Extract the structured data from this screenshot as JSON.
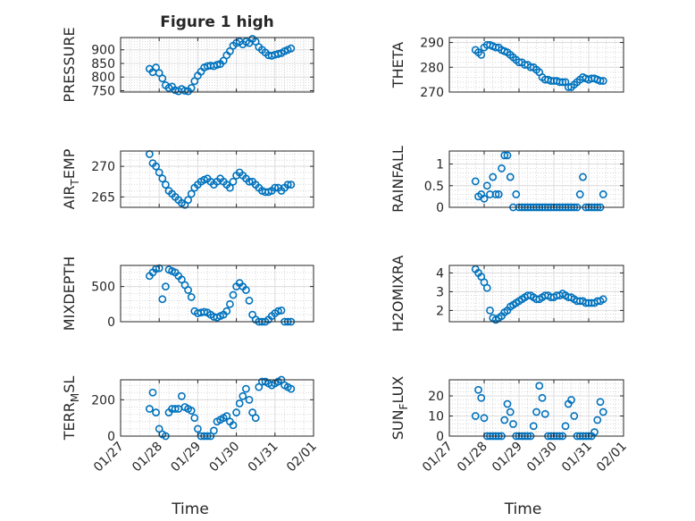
{
  "figure": {
    "title": "Figure 1 high",
    "marker_color": "#0072bd",
    "axis_color": "#262626",
    "grid_color": "#c8c8c8"
  },
  "chart_data": [
    {
      "type": "scatter",
      "title": "Figure 1 high",
      "ylabel": "PRESSURE",
      "xlabel": "",
      "x_tick_labels": [],
      "xlim": [
        "01/27",
        "02/01"
      ],
      "ylim": [
        745,
        945
      ],
      "yticks": [
        750,
        800,
        850,
        900
      ],
      "y_tick_labels": [
        "750",
        "800",
        "850",
        "900"
      ],
      "grid": true,
      "x": [
        "01/27 18:00",
        "01/27 20:00",
        "01/27 22:00",
        "01/28 00:00",
        "01/28 02:00",
        "01/28 04:00",
        "01/28 06:00",
        "01/28 08:00",
        "01/28 10:00",
        "01/28 12:00",
        "01/28 14:00",
        "01/28 16:00",
        "01/28 18:00",
        "01/28 20:00",
        "01/28 22:00",
        "01/29 00:00",
        "01/29 02:00",
        "01/29 04:00",
        "01/29 06:00",
        "01/29 08:00",
        "01/29 10:00",
        "01/29 12:00",
        "01/29 14:00",
        "01/29 16:00",
        "01/29 18:00",
        "01/29 20:00",
        "01/29 22:00",
        "01/30 00:00",
        "01/30 02:00",
        "01/30 04:00",
        "01/30 06:00",
        "01/30 08:00",
        "01/30 10:00",
        "01/30 12:00",
        "01/30 14:00",
        "01/30 16:00",
        "01/30 18:00",
        "01/30 20:00",
        "01/30 22:00",
        "01/31 00:00",
        "01/31 02:00",
        "01/31 04:00",
        "01/31 06:00",
        "01/31 08:00",
        "01/31 10:00"
      ],
      "y": [
        830,
        818,
        835,
        815,
        795,
        770,
        760,
        765,
        752,
        748,
        756,
        750,
        748,
        760,
        785,
        805,
        820,
        835,
        840,
        842,
        840,
        845,
        848,
        860,
        880,
        895,
        915,
        925,
        930,
        920,
        930,
        925,
        940,
        930,
        910,
        900,
        890,
        880,
        878,
        882,
        885,
        888,
        895,
        900,
        905
      ]
    },
    {
      "type": "scatter",
      "ylabel": "THETA",
      "x_tick_labels": [],
      "xlim": [
        "01/27",
        "02/01"
      ],
      "ylim": [
        270,
        292
      ],
      "yticks": [
        270,
        280,
        290
      ],
      "y_tick_labels": [
        "270",
        "280",
        "290"
      ],
      "grid": true,
      "x": [
        "01/27 18:00",
        "01/27 20:00",
        "01/27 22:00",
        "01/28 00:00",
        "01/28 02:00",
        "01/28 04:00",
        "01/28 06:00",
        "01/28 08:00",
        "01/28 10:00",
        "01/28 12:00",
        "01/28 14:00",
        "01/28 16:00",
        "01/28 18:00",
        "01/28 20:00",
        "01/28 22:00",
        "01/29 00:00",
        "01/29 02:00",
        "01/29 04:00",
        "01/29 06:00",
        "01/29 08:00",
        "01/29 10:00",
        "01/29 12:00",
        "01/29 14:00",
        "01/29 16:00",
        "01/29 18:00",
        "01/29 20:00",
        "01/29 22:00",
        "01/30 00:00",
        "01/30 02:00",
        "01/30 04:00",
        "01/30 06:00",
        "01/30 08:00",
        "01/30 10:00",
        "01/30 12:00",
        "01/30 14:00",
        "01/30 16:00",
        "01/30 18:00",
        "01/30 20:00",
        "01/30 22:00",
        "01/31 00:00",
        "01/31 02:00",
        "01/31 04:00",
        "01/31 06:00",
        "01/31 08:00",
        "01/31 10:00"
      ],
      "y": [
        287,
        286,
        285,
        288,
        289,
        289,
        288.5,
        288,
        288,
        287,
        286.5,
        286,
        285,
        284,
        283,
        282,
        282,
        281,
        281,
        280,
        280,
        279,
        278,
        276,
        275,
        275,
        274.5,
        274.5,
        274.5,
        274,
        274,
        274,
        272,
        272,
        273,
        274,
        275,
        276,
        275.5,
        275,
        275.5,
        275.5,
        275,
        274.5,
        274.5
      ]
    },
    {
      "type": "scatter",
      "ylabel": "AIR_TEMP",
      "ylabel_parts": [
        "AIR",
        "T",
        "EMP"
      ],
      "x_tick_labels": [],
      "xlim": [
        "01/27",
        "02/01"
      ],
      "ylim": [
        263.3,
        272.5
      ],
      "yticks": [
        265,
        270
      ],
      "y_tick_labels": [
        "265",
        "270"
      ],
      "grid": true,
      "x": [
        "01/27 18:00",
        "01/27 20:00",
        "01/27 22:00",
        "01/28 00:00",
        "01/28 02:00",
        "01/28 04:00",
        "01/28 06:00",
        "01/28 08:00",
        "01/28 10:00",
        "01/28 12:00",
        "01/28 14:00",
        "01/28 16:00",
        "01/28 18:00",
        "01/28 20:00",
        "01/28 22:00",
        "01/29 00:00",
        "01/29 02:00",
        "01/29 04:00",
        "01/29 06:00",
        "01/29 08:00",
        "01/29 10:00",
        "01/29 12:00",
        "01/29 14:00",
        "01/29 16:00",
        "01/29 18:00",
        "01/29 20:00",
        "01/29 22:00",
        "01/30 00:00",
        "01/30 02:00",
        "01/30 04:00",
        "01/30 06:00",
        "01/30 08:00",
        "01/30 10:00",
        "01/30 12:00",
        "01/30 14:00",
        "01/30 16:00",
        "01/30 18:00",
        "01/30 20:00",
        "01/30 22:00",
        "01/31 00:00",
        "01/31 02:00",
        "01/31 04:00",
        "01/31 06:00",
        "01/31 08:00",
        "01/31 10:00"
      ],
      "y": [
        272,
        270.5,
        270,
        269,
        268,
        267,
        266,
        265.5,
        265,
        264.5,
        264,
        263.7,
        264.5,
        265.5,
        266.5,
        267,
        267.5,
        267.8,
        268,
        267.5,
        267,
        267.5,
        268,
        267.5,
        267,
        266.5,
        267.5,
        268.5,
        269,
        268.5,
        268,
        267.5,
        267.5,
        267,
        266.5,
        266,
        265.8,
        265.8,
        266,
        266.5,
        266.5,
        266,
        266.5,
        267,
        267
      ]
    },
    {
      "type": "scatter",
      "ylabel": "RAINFALL",
      "x_tick_labels": [],
      "xlim": [
        "01/27",
        "02/01"
      ],
      "ylim": [
        0,
        1.3
      ],
      "yticks": [
        0,
        0.5,
        1
      ],
      "y_tick_labels": [
        "0",
        "0.5",
        "1"
      ],
      "grid": true,
      "x": [
        "01/27 18:00",
        "01/27 20:00",
        "01/27 22:00",
        "01/28 00:00",
        "01/28 02:00",
        "01/28 04:00",
        "01/28 06:00",
        "01/28 08:00",
        "01/28 10:00",
        "01/28 12:00",
        "01/28 14:00",
        "01/28 16:00",
        "01/28 18:00",
        "01/28 20:00",
        "01/28 22:00",
        "01/29 00:00",
        "01/29 02:00",
        "01/29 04:00",
        "01/29 06:00",
        "01/29 08:00",
        "01/29 10:00",
        "01/29 12:00",
        "01/29 14:00",
        "01/29 16:00",
        "01/29 18:00",
        "01/29 20:00",
        "01/29 22:00",
        "01/30 00:00",
        "01/30 02:00",
        "01/30 04:00",
        "01/30 06:00",
        "01/30 08:00",
        "01/30 10:00",
        "01/30 12:00",
        "01/30 14:00",
        "01/30 16:00",
        "01/30 18:00",
        "01/30 20:00",
        "01/30 22:00",
        "01/31 00:00",
        "01/31 02:00",
        "01/31 04:00",
        "01/31 06:00",
        "01/31 08:00",
        "01/31 10:00"
      ],
      "y": [
        0.6,
        0.25,
        0.3,
        0.2,
        0.5,
        0.3,
        0.7,
        0.3,
        0.3,
        0.9,
        1.2,
        1.2,
        0.7,
        0,
        0.3,
        0,
        0,
        0,
        0,
        0,
        0,
        0,
        0,
        0,
        0,
        0,
        0,
        0,
        0,
        0,
        0,
        0,
        0,
        0,
        0,
        0,
        0.3,
        0.7,
        0,
        0,
        0,
        0,
        0,
        0,
        0.3
      ]
    },
    {
      "type": "scatter",
      "ylabel": "MIXDEPTH",
      "x_tick_labels": [],
      "xlim": [
        "01/27",
        "02/01"
      ],
      "ylim": [
        0,
        800
      ],
      "yticks": [
        0,
        500
      ],
      "y_tick_labels": [
        "0",
        "500"
      ],
      "grid": true,
      "x": [
        "01/27 18:00",
        "01/27 20:00",
        "01/27 22:00",
        "01/28 00:00",
        "01/28 02:00",
        "01/28 04:00",
        "01/28 06:00",
        "01/28 08:00",
        "01/28 10:00",
        "01/28 12:00",
        "01/28 14:00",
        "01/28 16:00",
        "01/28 18:00",
        "01/28 20:00",
        "01/28 22:00",
        "01/29 00:00",
        "01/29 02:00",
        "01/29 04:00",
        "01/29 06:00",
        "01/29 08:00",
        "01/29 10:00",
        "01/29 12:00",
        "01/29 14:00",
        "01/29 16:00",
        "01/29 18:00",
        "01/29 20:00",
        "01/29 22:00",
        "01/30 00:00",
        "01/30 02:00",
        "01/30 04:00",
        "01/30 06:00",
        "01/30 08:00",
        "01/30 10:00",
        "01/30 12:00",
        "01/30 14:00",
        "01/30 16:00",
        "01/30 18:00",
        "01/30 20:00",
        "01/30 22:00",
        "01/31 00:00",
        "01/31 02:00",
        "01/31 04:00",
        "01/31 06:00",
        "01/31 08:00",
        "01/31 10:00"
      ],
      "y": [
        650,
        700,
        750,
        760,
        320,
        500,
        740,
        720,
        700,
        650,
        600,
        520,
        450,
        350,
        150,
        120,
        130,
        140,
        130,
        100,
        70,
        60,
        80,
        100,
        150,
        250,
        380,
        500,
        550,
        500,
        450,
        300,
        100,
        30,
        0,
        0,
        0,
        30,
        80,
        120,
        150,
        160,
        0,
        0,
        0
      ]
    },
    {
      "type": "scatter",
      "ylabel": "H2OMIXRA",
      "x_tick_labels": [],
      "xlim": [
        "01/27",
        "02/01"
      ],
      "ylim": [
        1.4,
        4.4
      ],
      "yticks": [
        2,
        3,
        4
      ],
      "y_tick_labels": [
        "2",
        "3",
        "4"
      ],
      "grid": true,
      "x": [
        "01/27 18:00",
        "01/27 20:00",
        "01/27 22:00",
        "01/28 00:00",
        "01/28 02:00",
        "01/28 04:00",
        "01/28 06:00",
        "01/28 08:00",
        "01/28 10:00",
        "01/28 12:00",
        "01/28 14:00",
        "01/28 16:00",
        "01/28 18:00",
        "01/28 20:00",
        "01/28 22:00",
        "01/29 00:00",
        "01/29 02:00",
        "01/29 04:00",
        "01/29 06:00",
        "01/29 08:00",
        "01/29 10:00",
        "01/29 12:00",
        "01/29 14:00",
        "01/29 16:00",
        "01/29 18:00",
        "01/29 20:00",
        "01/29 22:00",
        "01/30 00:00",
        "01/30 02:00",
        "01/30 04:00",
        "01/30 06:00",
        "01/30 08:00",
        "01/30 10:00",
        "01/30 12:00",
        "01/30 14:00",
        "01/30 16:00",
        "01/30 18:00",
        "01/30 20:00",
        "01/30 22:00",
        "01/31 00:00",
        "01/31 02:00",
        "01/31 04:00",
        "01/31 06:00",
        "01/31 08:00",
        "01/31 10:00"
      ],
      "y": [
        4.2,
        4.0,
        3.8,
        3.5,
        3.2,
        2.0,
        1.6,
        1.5,
        1.6,
        1.7,
        1.9,
        2.0,
        2.2,
        2.3,
        2.4,
        2.5,
        2.6,
        2.7,
        2.8,
        2.8,
        2.7,
        2.6,
        2.6,
        2.7,
        2.8,
        2.8,
        2.7,
        2.7,
        2.8,
        2.8,
        2.9,
        2.8,
        2.7,
        2.7,
        2.6,
        2.5,
        2.5,
        2.5,
        2.4,
        2.4,
        2.4,
        2.4,
        2.5,
        2.5,
        2.6
      ]
    },
    {
      "type": "scatter",
      "ylabel": "TERR_MSL",
      "ylabel_parts": [
        "TERR",
        "M",
        "SL"
      ],
      "x_tick_labels": [
        "01/27",
        "01/28",
        "01/29",
        "01/30",
        "01/31",
        "02/01"
      ],
      "xlabel": "Time",
      "xlim": [
        "01/27",
        "02/01"
      ],
      "ylim": [
        0,
        310
      ],
      "yticks": [
        0,
        200
      ],
      "y_tick_labels": [
        "0",
        "200"
      ],
      "grid": true,
      "x": [
        "01/27 18:00",
        "01/27 20:00",
        "01/27 22:00",
        "01/28 00:00",
        "01/28 02:00",
        "01/28 04:00",
        "01/28 06:00",
        "01/28 08:00",
        "01/28 10:00",
        "01/28 12:00",
        "01/28 14:00",
        "01/28 16:00",
        "01/28 18:00",
        "01/28 20:00",
        "01/28 22:00",
        "01/29 00:00",
        "01/29 02:00",
        "01/29 04:00",
        "01/29 06:00",
        "01/29 08:00",
        "01/29 10:00",
        "01/29 12:00",
        "01/29 14:00",
        "01/29 16:00",
        "01/29 18:00",
        "01/29 20:00",
        "01/29 22:00",
        "01/30 00:00",
        "01/30 02:00",
        "01/30 04:00",
        "01/30 06:00",
        "01/30 08:00",
        "01/30 10:00",
        "01/30 12:00",
        "01/30 14:00",
        "01/30 16:00",
        "01/30 18:00",
        "01/30 20:00",
        "01/30 22:00",
        "01/31 00:00",
        "01/31 02:00",
        "01/31 04:00",
        "01/31 06:00",
        "01/31 08:00",
        "01/31 10:00"
      ],
      "y": [
        150,
        240,
        130,
        40,
        10,
        0,
        130,
        150,
        150,
        150,
        220,
        160,
        150,
        140,
        100,
        40,
        0,
        0,
        0,
        0,
        30,
        80,
        90,
        100,
        110,
        80,
        60,
        130,
        180,
        220,
        260,
        200,
        130,
        100,
        270,
        300,
        300,
        290,
        280,
        290,
        300,
        310,
        280,
        270,
        260
      ]
    },
    {
      "type": "scatter",
      "ylabel": "SUN_FLUX",
      "ylabel_parts": [
        "SUN",
        "F",
        "LUX"
      ],
      "x_tick_labels": [
        "01/27",
        "01/28",
        "01/29",
        "01/30",
        "01/31",
        "02/01"
      ],
      "xlabel": "Time",
      "xlim": [
        "01/27",
        "02/01"
      ],
      "ylim": [
        0,
        28
      ],
      "yticks": [
        0,
        10,
        20
      ],
      "y_tick_labels": [
        "0",
        "10",
        "20"
      ],
      "grid": true,
      "x": [
        "01/27 18:00",
        "01/27 20:00",
        "01/27 22:00",
        "01/28 00:00",
        "01/28 02:00",
        "01/28 04:00",
        "01/28 06:00",
        "01/28 08:00",
        "01/28 10:00",
        "01/28 12:00",
        "01/28 14:00",
        "01/28 16:00",
        "01/28 18:00",
        "01/28 20:00",
        "01/28 22:00",
        "01/29 00:00",
        "01/29 02:00",
        "01/29 04:00",
        "01/29 06:00",
        "01/29 08:00",
        "01/29 10:00",
        "01/29 12:00",
        "01/29 14:00",
        "01/29 16:00",
        "01/29 18:00",
        "01/29 20:00",
        "01/29 22:00",
        "01/30 00:00",
        "01/30 02:00",
        "01/30 04:00",
        "01/30 06:00",
        "01/30 08:00",
        "01/30 10:00",
        "01/30 12:00",
        "01/30 14:00",
        "01/30 16:00",
        "01/30 18:00",
        "01/30 20:00",
        "01/30 22:00",
        "01/31 00:00",
        "01/31 02:00",
        "01/31 04:00",
        "01/31 06:00",
        "01/31 08:00",
        "01/31 10:00"
      ],
      "y": [
        10,
        23,
        19,
        9,
        0,
        0,
        0,
        0,
        0,
        0,
        8,
        16,
        12,
        6,
        0,
        0,
        0,
        0,
        0,
        0,
        5,
        12,
        25,
        19,
        11,
        0,
        0,
        0,
        0,
        0,
        0,
        5,
        16,
        18,
        10,
        0,
        0,
        0,
        0,
        0,
        0,
        2,
        8,
        17,
        12
      ]
    }
  ]
}
